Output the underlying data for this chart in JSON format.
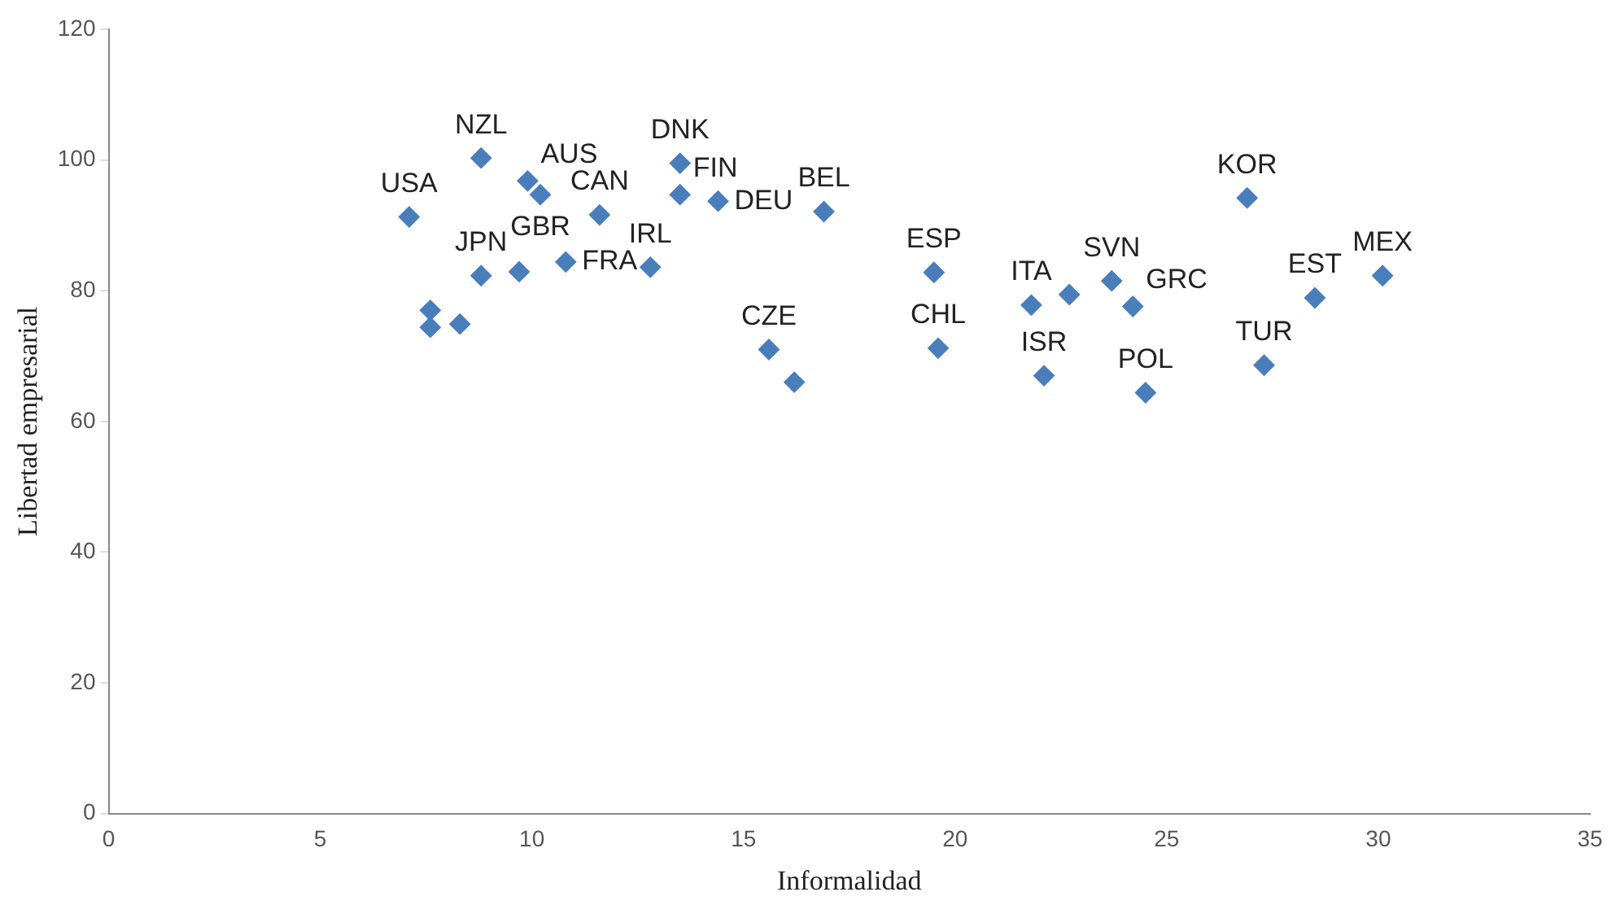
{
  "chart_data": {
    "type": "scatter",
    "xlabel": "Informalidad",
    "ylabel": "Libertad empresarial",
    "xlim": [
      0,
      35
    ],
    "ylim": [
      0,
      120
    ],
    "xticks": [
      0,
      5,
      10,
      15,
      20,
      25,
      30,
      35
    ],
    "yticks": [
      0,
      20,
      40,
      60,
      80,
      100,
      120
    ],
    "grid": false,
    "legend": false,
    "marker": "diamond",
    "series": [
      {
        "color": "#4a7ebb",
        "x": [
          7.1,
          8.8,
          9.9,
          10.2,
          11.6,
          8.8,
          9.7,
          10.8,
          12.8,
          13.5,
          13.5,
          14.4,
          16.9,
          7.6,
          7.6,
          8.3,
          15.6,
          16.2,
          19.5,
          19.6,
          21.8,
          22.7,
          22.1,
          23.7,
          24.2,
          24.5,
          26.9,
          27.3,
          28.5,
          30.1
        ],
        "values": [
          91.3,
          100.3,
          96.8,
          94.7,
          91.6,
          82.3,
          82.9,
          84.4,
          83.6,
          99.5,
          94.7,
          93.7,
          92.1,
          77.0,
          74.4,
          74.9,
          71.0,
          66.0,
          82.8,
          71.2,
          77.8,
          79.4,
          67.0,
          81.5,
          77.6,
          64.4,
          94.2,
          68.6,
          78.9,
          82.3
        ]
      }
    ],
    "annotations": [
      {
        "text": "USA",
        "x": 7.1,
        "y": 91.3
      },
      {
        "text": "NZL",
        "x": 8.8,
        "y": 100.3
      },
      {
        "text": "AUS",
        "x": 9.9,
        "y": 96.8
      },
      {
        "text": "GBR",
        "x": 10.2,
        "y": 94.7
      },
      {
        "text": "CAN",
        "x": 11.6,
        "y": 91.6
      },
      {
        "text": "JPN",
        "x": 8.8,
        "y": 82.3
      },
      {
        "text": "FRA",
        "x": 10.8,
        "y": 84.4
      },
      {
        "text": "IRL",
        "x": 12.8,
        "y": 83.6
      },
      {
        "text": "DNK",
        "x": 13.5,
        "y": 99.5
      },
      {
        "text": "FIN",
        "x": 13.5,
        "y": 94.7
      },
      {
        "text": "DEU",
        "x": 14.4,
        "y": 93.7
      },
      {
        "text": "BEL",
        "x": 16.9,
        "y": 92.1
      },
      {
        "text": "CZE",
        "x": 15.6,
        "y": 71.0
      },
      {
        "text": "ESP",
        "x": 19.5,
        "y": 82.8
      },
      {
        "text": "CHL",
        "x": 19.6,
        "y": 71.2
      },
      {
        "text": "ITA",
        "x": 21.8,
        "y": 77.8
      },
      {
        "text": "ISR",
        "x": 22.1,
        "y": 67.0
      },
      {
        "text": "SVN",
        "x": 23.7,
        "y": 81.5
      },
      {
        "text": "GRC",
        "x": 24.2,
        "y": 77.6
      },
      {
        "text": "POL",
        "x": 24.5,
        "y": 64.4
      },
      {
        "text": "KOR",
        "x": 26.9,
        "y": 94.2
      },
      {
        "text": "TUR",
        "x": 27.3,
        "y": 68.6
      },
      {
        "text": "EST",
        "x": 28.5,
        "y": 78.9
      },
      {
        "text": "MEX",
        "x": 30.1,
        "y": 82.3
      }
    ]
  }
}
